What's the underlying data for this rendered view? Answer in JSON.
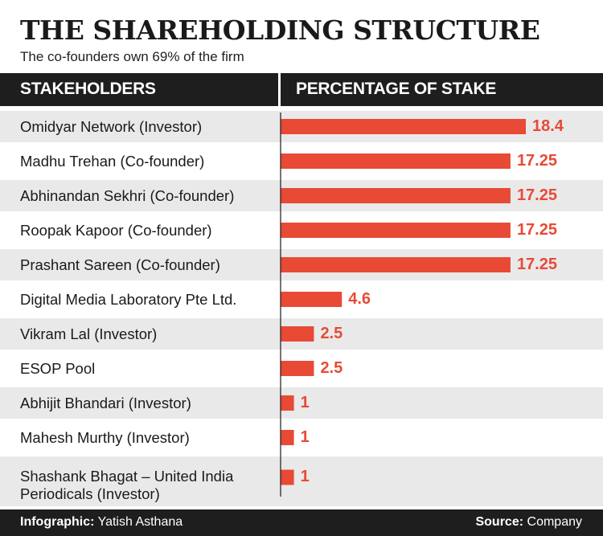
{
  "title": "THE SHAREHOLDING STRUCTURE",
  "subtitle": "The co-founders own 69% of the firm",
  "header": {
    "left": "STAKEHOLDERS",
    "right": "PERCENTAGE OF STAKE"
  },
  "chart_data": {
    "type": "bar",
    "orientation": "horizontal",
    "title": "THE SHAREHOLDING STRUCTURE",
    "subtitle": "The co-founders own 69% of the firm",
    "xlabel": "PERCENTAGE OF STAKE",
    "ylabel": "STAKEHOLDERS",
    "categories": [
      "Omidyar Network (Investor)",
      "Madhu Trehan (Co-founder)",
      "Abhinandan Sekhri (Co-founder)",
      "Roopak Kapoor (Co-founder)",
      "Prashant Sareen (Co-founder)",
      "Digital Media Laboratory Pte Ltd.",
      "Vikram Lal (Investor)",
      "ESOP Pool",
      "Abhijit Bhandari (Investor)",
      "Mahesh Murthy (Investor)",
      "Shashank Bhagat – United India\nPeriodicals (Investor)"
    ],
    "values": [
      18.4,
      17.25,
      17.25,
      17.25,
      17.25,
      4.6,
      2.5,
      2.5,
      1,
      1,
      1
    ],
    "value_labels": [
      "18.4",
      "17.25",
      "17.25",
      "17.25",
      "17.25",
      "4.6",
      "2.5",
      "2.5",
      "1",
      "1",
      "1"
    ],
    "xlim": [
      0,
      18.4
    ],
    "grid": false,
    "legend": "none",
    "bar_color": "#e84a36",
    "row_stripe_color": "#e9e9e9"
  },
  "footer": {
    "credit_label": "Infographic:",
    "credit_name": "Yatish Asthana",
    "source_label": "Source:",
    "source_name": "Company"
  },
  "colors": {
    "header_bg": "#1e1e1e",
    "bar": "#e84a36",
    "stripe": "#e9e9e9",
    "text": "#1a1a1a"
  }
}
